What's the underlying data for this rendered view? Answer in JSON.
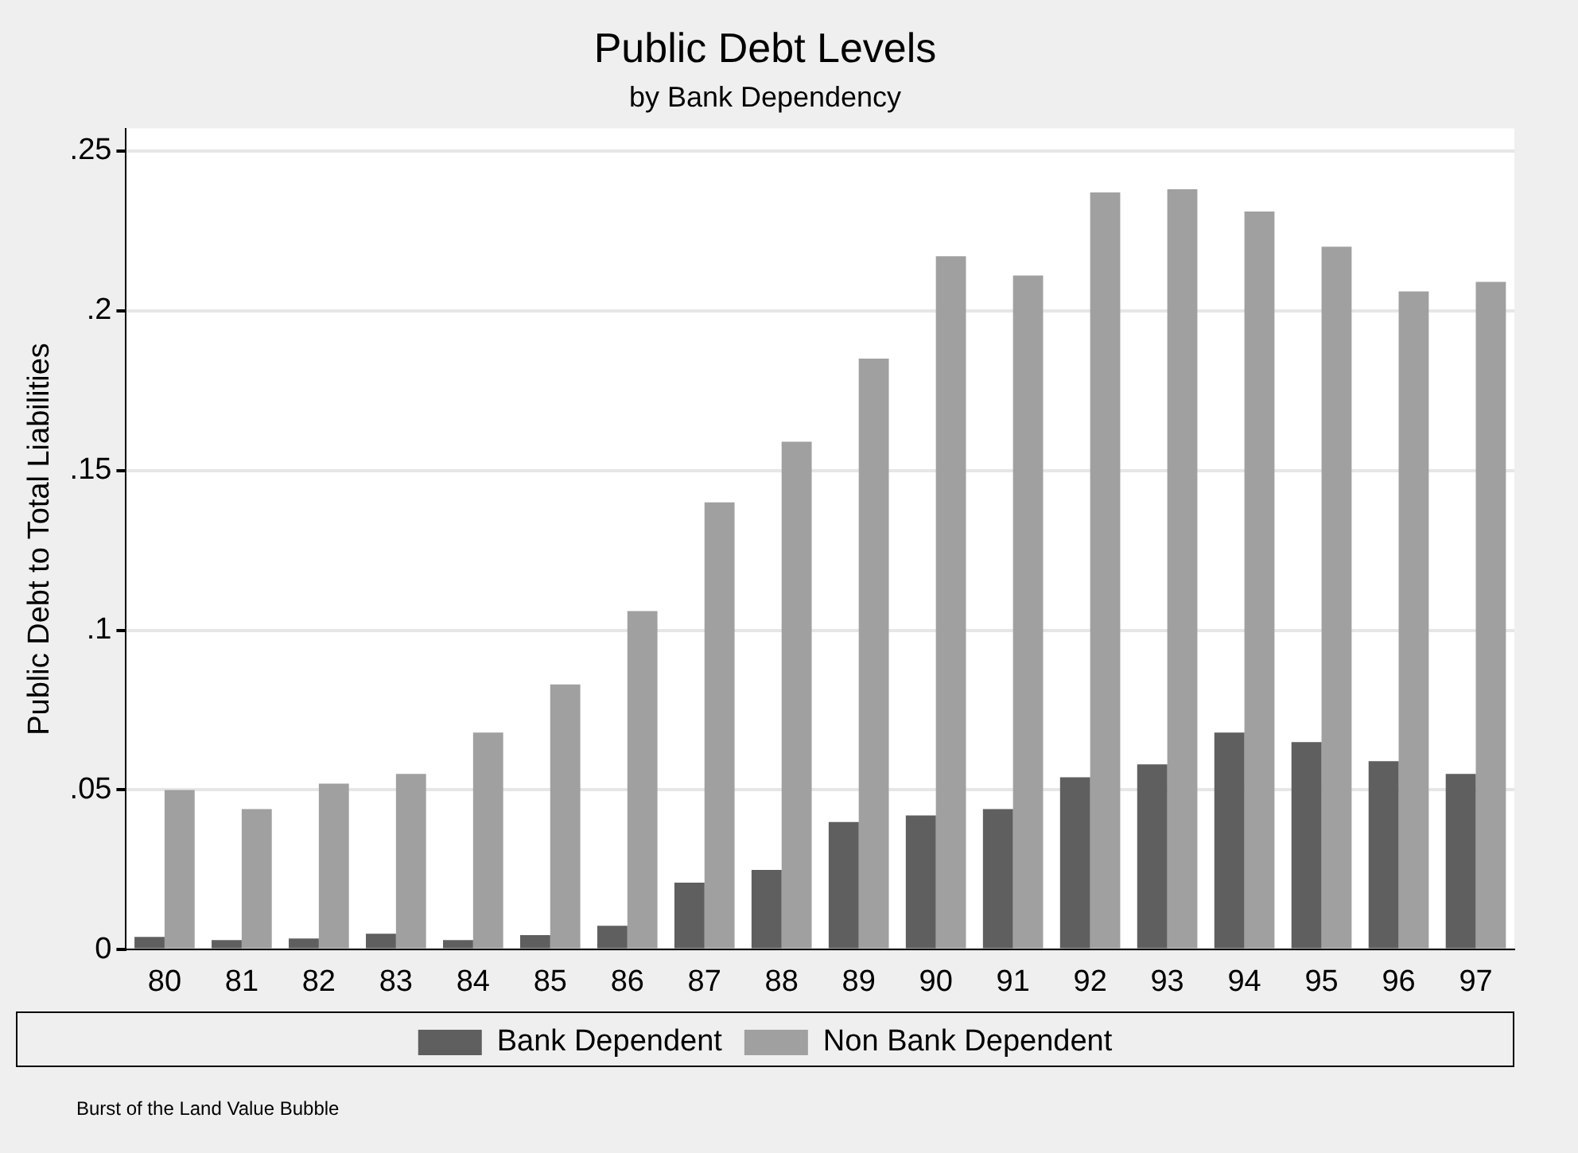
{
  "chart_data": {
    "type": "bar",
    "title": "Public Debt Levels",
    "subtitle": "by Bank Dependency",
    "ylabel": "Public Debt to Total Liabilities",
    "categories": [
      "80",
      "81",
      "82",
      "83",
      "84",
      "85",
      "86",
      "87",
      "88",
      "89",
      "90",
      "91",
      "92",
      "93",
      "94",
      "95",
      "96",
      "97"
    ],
    "series": [
      {
        "name": "Bank Dependent",
        "color": "#5f5f5f",
        "values": [
          0.004,
          0.003,
          0.0035,
          0.005,
          0.003,
          0.0046,
          0.0075,
          0.021,
          0.025,
          0.04,
          0.042,
          0.044,
          0.054,
          0.058,
          0.068,
          0.065,
          0.059,
          0.055
        ]
      },
      {
        "name": "Non Bank Dependent",
        "color": "#a0a0a0",
        "values": [
          0.05,
          0.044,
          0.052,
          0.055,
          0.068,
          0.083,
          0.106,
          0.14,
          0.159,
          0.185,
          0.217,
          0.211,
          0.237,
          0.238,
          0.231,
          0.22,
          0.206,
          0.209
        ]
      }
    ],
    "ylim": [
      0,
      0.257
    ],
    "yticks": [
      0,
      {
        "value": 0.05,
        "label": ".05"
      },
      {
        "value": 0.1,
        "label": ".1"
      },
      {
        "value": 0.15,
        "label": ".15"
      },
      {
        "value": 0.2,
        "label": ".2"
      },
      {
        "value": 0.25,
        "label": ".25"
      }
    ],
    "grid": "y",
    "legend": "bottom",
    "annotations": [
      "Burst of the Land Value Bubble"
    ]
  }
}
